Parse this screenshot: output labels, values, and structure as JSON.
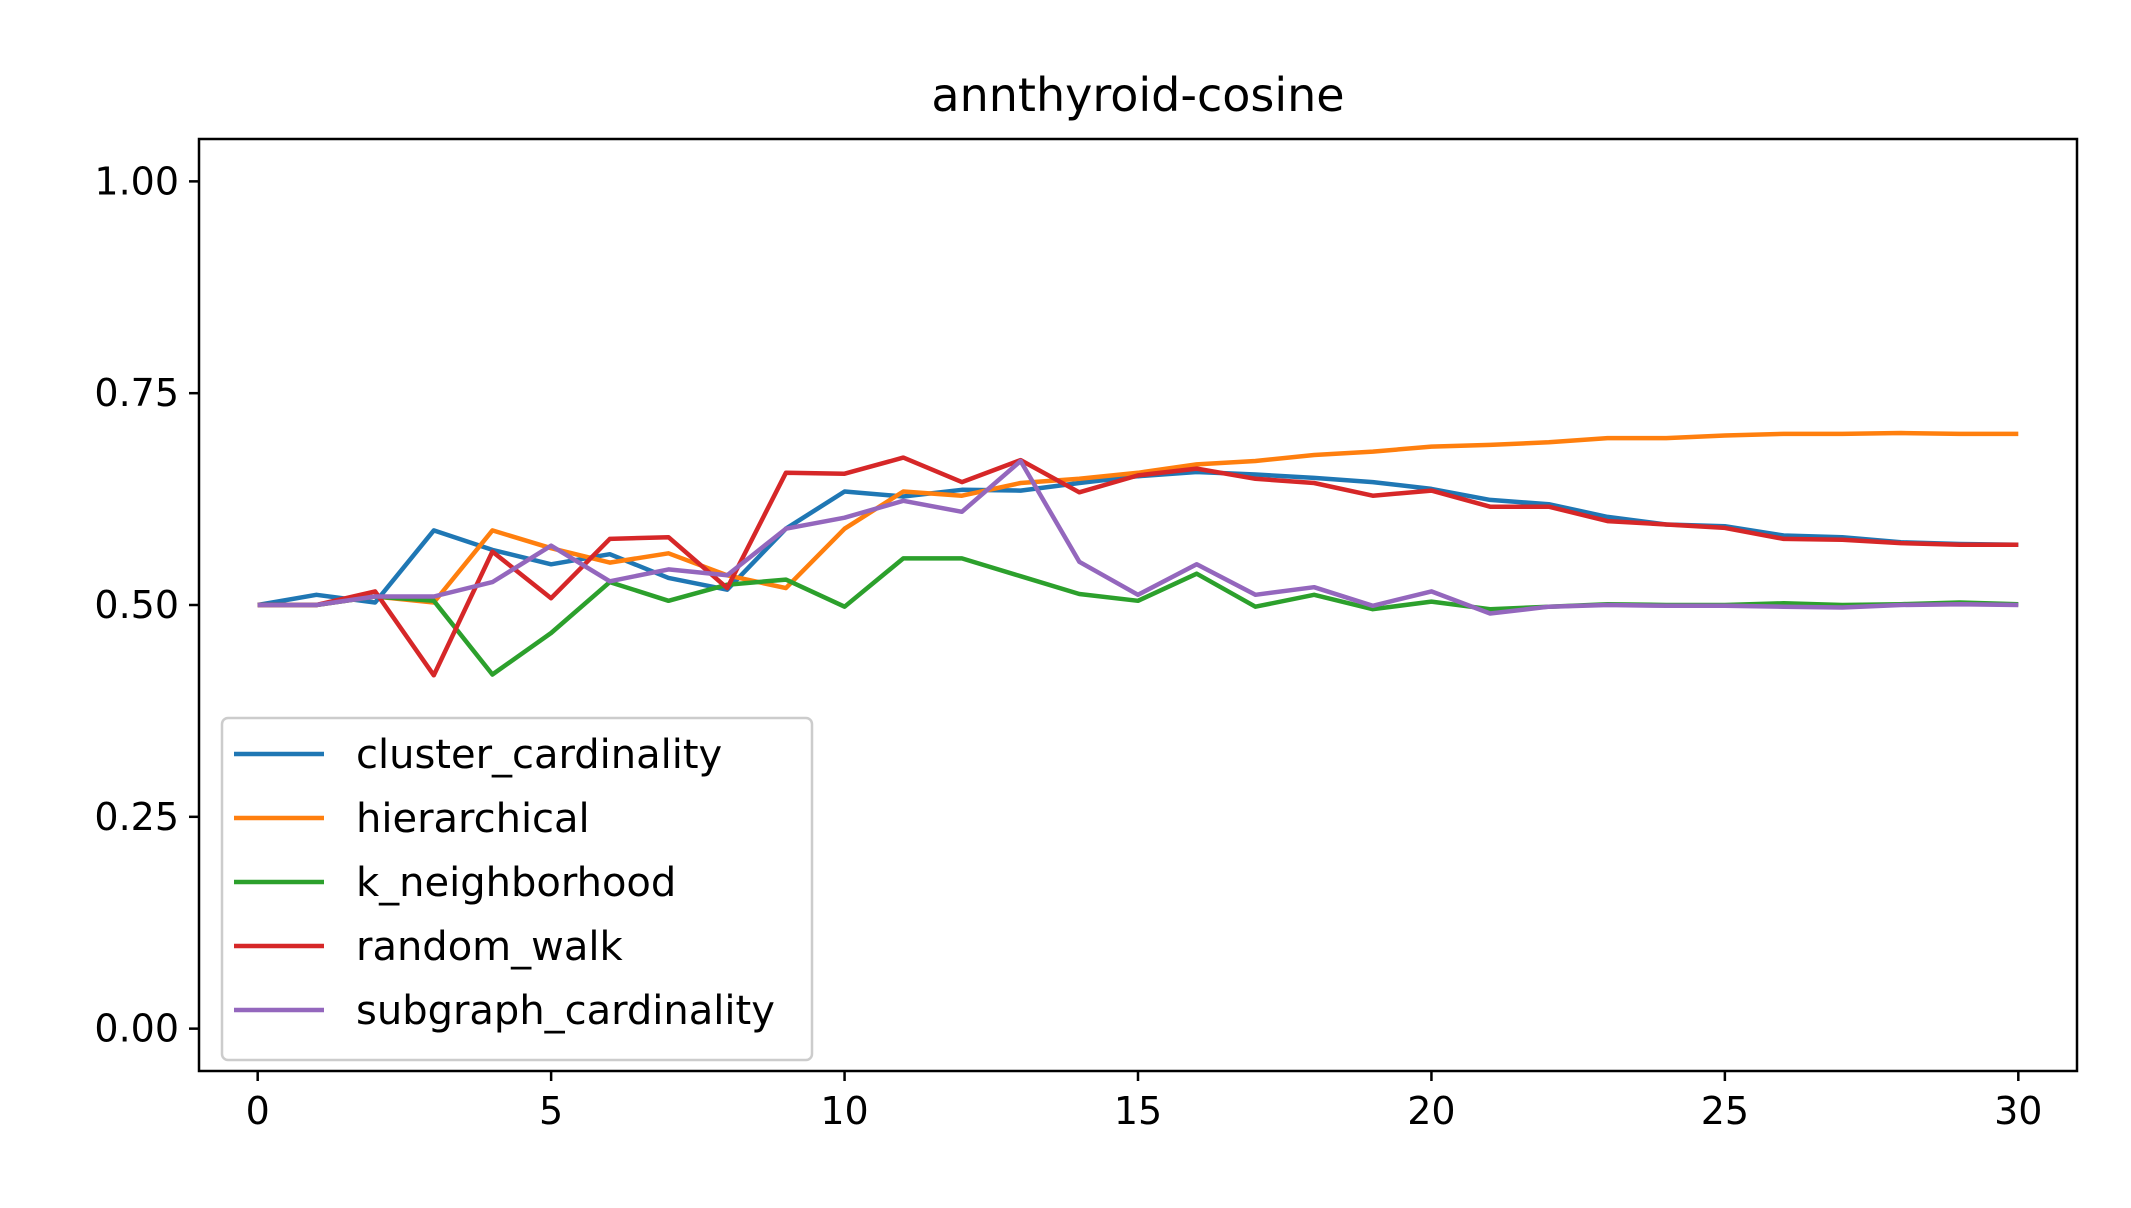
{
  "chart_data": {
    "type": "line",
    "title": "annthyroid-cosine",
    "xlabel": "",
    "ylabel": "",
    "xlim": [
      -1,
      31
    ],
    "ylim": [
      -0.05,
      1.05
    ],
    "xticks": [
      0,
      5,
      10,
      15,
      20,
      25,
      30
    ],
    "xtick_labels": [
      "0",
      "5",
      "10",
      "15",
      "20",
      "25",
      "30"
    ],
    "yticks": [
      0.0,
      0.25,
      0.5,
      0.75,
      1.0
    ],
    "ytick_labels": [
      "0.00",
      "0.25",
      "0.50",
      "0.75",
      "1.00"
    ],
    "grid": false,
    "legend_position": "lower-left",
    "x": [
      0,
      1,
      2,
      3,
      4,
      5,
      6,
      7,
      8,
      9,
      10,
      11,
      12,
      13,
      14,
      15,
      16,
      17,
      18,
      19,
      20,
      21,
      22,
      23,
      24,
      25,
      26,
      27,
      28,
      29,
      30
    ],
    "series": [
      {
        "name": "cluster_cardinality",
        "color": "#1f77b4",
        "values": [
          0.5,
          0.512,
          0.503,
          0.588,
          0.565,
          0.548,
          0.56,
          0.532,
          0.518,
          0.59,
          0.634,
          0.628,
          0.636,
          0.635,
          0.644,
          0.652,
          0.657,
          0.654,
          0.65,
          0.645,
          0.637,
          0.624,
          0.619,
          0.604,
          0.595,
          0.593,
          0.582,
          0.58,
          0.574,
          0.572,
          0.571
        ]
      },
      {
        "name": "hierarchical",
        "color": "#ff7f0e",
        "values": [
          0.5,
          0.5,
          0.51,
          0.503,
          0.588,
          0.567,
          0.55,
          0.561,
          0.535,
          0.52,
          0.59,
          0.634,
          0.629,
          0.644,
          0.649,
          0.656,
          0.666,
          0.67,
          0.677,
          0.681,
          0.687,
          0.689,
          0.692,
          0.697,
          0.697,
          0.7,
          0.702,
          0.702,
          0.703,
          0.702,
          0.702
        ]
      },
      {
        "name": "k_neighborhood",
        "color": "#2ca02c",
        "values": [
          0.5,
          0.5,
          0.51,
          0.505,
          0.418,
          0.467,
          0.527,
          0.505,
          0.524,
          0.53,
          0.498,
          0.555,
          0.555,
          0.534,
          0.513,
          0.505,
          0.537,
          0.498,
          0.512,
          0.495,
          0.504,
          0.495,
          0.498,
          0.501,
          0.5,
          0.5,
          0.502,
          0.5,
          0.501,
          0.503,
          0.501
        ]
      },
      {
        "name": "random_walk",
        "color": "#d62728",
        "values": [
          0.5,
          0.5,
          0.516,
          0.417,
          0.563,
          0.508,
          0.578,
          0.58,
          0.52,
          0.656,
          0.655,
          0.674,
          0.645,
          0.671,
          0.633,
          0.653,
          0.661,
          0.649,
          0.644,
          0.629,
          0.635,
          0.616,
          0.616,
          0.599,
          0.595,
          0.591,
          0.578,
          0.577,
          0.573,
          0.571,
          0.571
        ]
      },
      {
        "name": "subgraph_cardinality",
        "color": "#9467bd",
        "values": [
          0.5,
          0.5,
          0.51,
          0.51,
          0.527,
          0.57,
          0.528,
          0.542,
          0.535,
          0.59,
          0.603,
          0.623,
          0.61,
          0.67,
          0.551,
          0.512,
          0.548,
          0.512,
          0.521,
          0.499,
          0.516,
          0.49,
          0.498,
          0.5,
          0.499,
          0.499,
          0.498,
          0.497,
          0.5,
          0.501,
          0.5
        ]
      }
    ]
  }
}
